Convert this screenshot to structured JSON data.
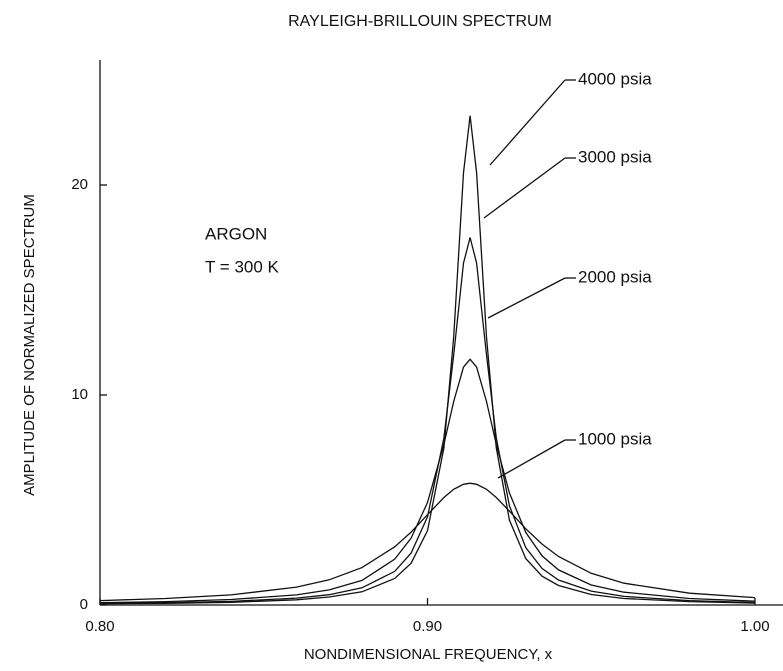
{
  "chart_data": {
    "type": "line",
    "title": "RAYLEIGH-BRILLOUIN SPECTRUM",
    "x_label": "NONDIMENSIONAL FREQUENCY, x",
    "y_label": "AMPLITUDE OF NORMALIZED SPECTRUM",
    "annotations": [
      "ARGON",
      "T = 300 K"
    ],
    "x": [
      0.8,
      0.82,
      0.84,
      0.86,
      0.87,
      0.88,
      0.89,
      0.895,
      0.9,
      0.905,
      0.908,
      0.911,
      0.913,
      0.915,
      0.918,
      0.921,
      0.925,
      0.93,
      0.935,
      0.94,
      0.95,
      0.96,
      0.98,
      1.0
    ],
    "series": [
      {
        "name": "4000 psia",
        "color": "#111111",
        "values": [
          0.06,
          0.08,
          0.13,
          0.25,
          0.38,
          0.63,
          1.26,
          1.99,
          3.54,
          7.48,
          12.76,
          20.58,
          23.3,
          20.58,
          12.76,
          7.48,
          4.05,
          2.21,
          1.37,
          0.93,
          0.5,
          0.31,
          0.16,
          0.09
        ]
      },
      {
        "name": "3000 psia",
        "color": "#111111",
        "values": [
          0.07,
          0.11,
          0.17,
          0.33,
          0.49,
          0.82,
          1.6,
          2.47,
          4.2,
          7.95,
          11.91,
          16.28,
          17.5,
          16.28,
          11.91,
          7.95,
          4.73,
          2.73,
          1.74,
          1.19,
          0.66,
          0.41,
          0.21,
          0.12
        ]
      },
      {
        "name": "2000 psia",
        "color": "#111111",
        "values": [
          0.11,
          0.16,
          0.26,
          0.48,
          0.72,
          1.17,
          2.18,
          3.18,
          4.88,
          7.65,
          9.69,
          11.33,
          11.7,
          11.33,
          9.69,
          7.65,
          5.34,
          3.45,
          2.34,
          1.67,
          0.95,
          0.61,
          0.31,
          0.18
        ]
      },
      {
        "name": "1000 psia",
        "color": "#111111",
        "values": [
          0.21,
          0.31,
          0.48,
          0.85,
          1.2,
          1.78,
          2.77,
          3.47,
          4.3,
          5.12,
          5.51,
          5.75,
          5.8,
          5.75,
          5.51,
          5.12,
          4.47,
          3.63,
          2.9,
          2.31,
          1.51,
          1.04,
          0.56,
          0.35
        ]
      }
    ],
    "xlim": [
      0.8,
      1.0
    ],
    "xticks": [
      {
        "value": 0.8,
        "label": "0.80"
      },
      {
        "value": 0.9,
        "label": "0.90"
      },
      {
        "value": 1.0,
        "label": "1.00"
      }
    ],
    "ylim": [
      0,
      26
    ],
    "yticks": [
      0,
      10,
      20
    ],
    "grid": false
  }
}
